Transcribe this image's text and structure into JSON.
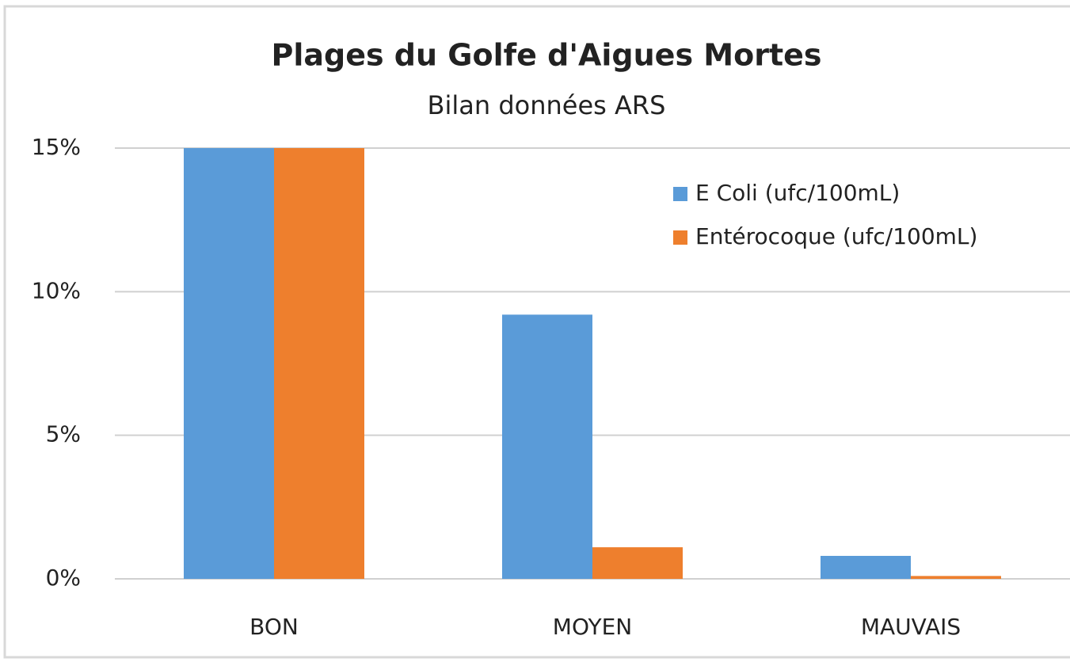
{
  "chart_data": {
    "type": "bar",
    "title": "Plages du Golfe d'Aigues Mortes",
    "subtitle": "Bilan données ARS",
    "categories": [
      "BON",
      "MOYEN",
      "MAUVAIS"
    ],
    "series": [
      {
        "name": "E Coli (ufc/100mL)",
        "color": "#5a9bd8",
        "values": [
          15,
          9.2,
          0.8
        ]
      },
      {
        "name": "Entérocoque (ufc/100mL)",
        "color": "#ee7f2d",
        "values": [
          15,
          1.1,
          0.1
        ]
      }
    ],
    "ylim": [
      0,
      15
    ],
    "yticks": [
      {
        "value": 0,
        "label": "0%"
      },
      {
        "value": 5,
        "label": "5%"
      },
      {
        "value": 10,
        "label": "10%"
      },
      {
        "value": 15,
        "label": "15%"
      }
    ],
    "grid": true,
    "legend": "top-right"
  }
}
